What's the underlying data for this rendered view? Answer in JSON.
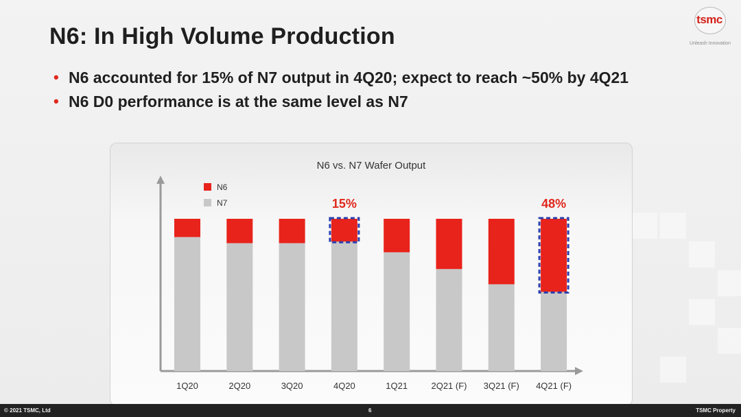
{
  "slide": {
    "title": "N6: In High Volume Production",
    "bullets": [
      "N6 accounted for 15% of N7 output in 4Q20; expect to reach ~50% by 4Q21",
      "N6 D0 performance is at the same level as N7"
    ]
  },
  "logo": {
    "text": "tsmc",
    "tagline": "Unleash Innovation"
  },
  "footer": {
    "copyright": "© 2021 TSMC, Ltd",
    "page": "6",
    "property": "TSMC Property"
  },
  "colors": {
    "n6": "#e8231b",
    "n7": "#c8c8c8",
    "highlight": "#2b3fb0",
    "text": "#1f1f1f",
    "accent": "#e0271c"
  },
  "chart_data": {
    "type": "bar",
    "stacked": true,
    "normalized": true,
    "title": "N6 vs. N7 Wafer Output",
    "categories": [
      "1Q20",
      "2Q20",
      "3Q20",
      "4Q20",
      "1Q21",
      "2Q21 (F)",
      "3Q21 (F)",
      "4Q21 (F)"
    ],
    "series": [
      {
        "name": "N7",
        "values": [
          88,
          84,
          84,
          85,
          78,
          67,
          57,
          52
        ]
      },
      {
        "name": "N6",
        "values": [
          12,
          16,
          16,
          15,
          22,
          33,
          43,
          48
        ]
      }
    ],
    "annotations": [
      {
        "category": "4Q20",
        "label": "15%"
      },
      {
        "category": "4Q21 (F)",
        "label": "48%"
      }
    ],
    "legend_position": "top-left",
    "yticks": false,
    "grid": false
  }
}
